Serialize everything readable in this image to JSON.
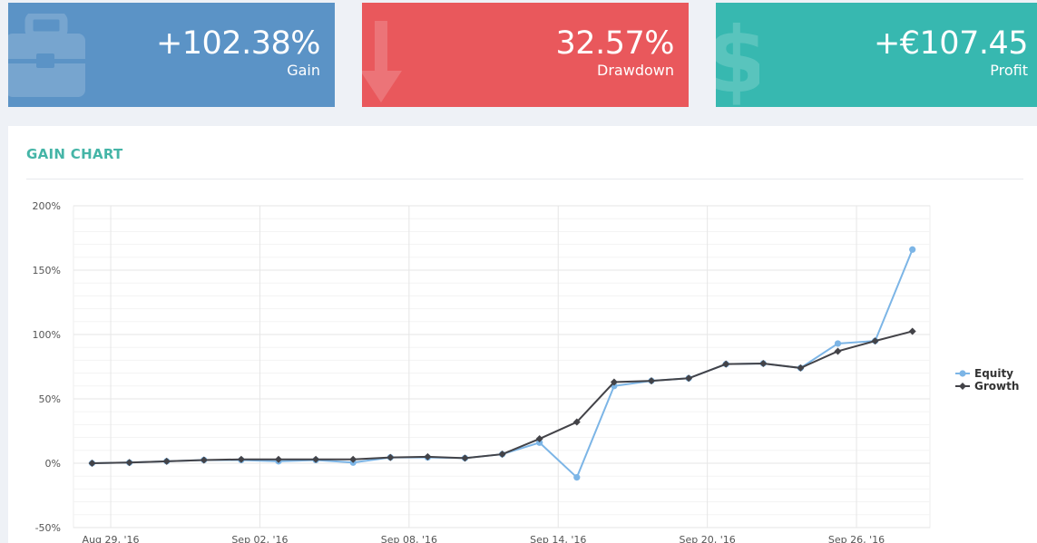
{
  "stats": {
    "gain": {
      "value": "+102.38%",
      "label": "Gain",
      "color": "#5b93c6",
      "icon": "briefcase-icon"
    },
    "drawdown": {
      "value": "32.57%",
      "label": "Drawdown",
      "color": "#e9585c",
      "icon": "arrow-down-icon"
    },
    "profit": {
      "value": "+€107.45",
      "label": "Profit",
      "color": "#37b8b0",
      "icon": "dollar-icon"
    }
  },
  "panel": {
    "title": "GAIN CHART"
  },
  "chart_data": {
    "type": "line",
    "title": "",
    "xlabel": "",
    "ylabel": "",
    "y_ticks": [
      "200%",
      "150%",
      "100%",
      "50%",
      "0%",
      "-50%"
    ],
    "y_tick_values": [
      200,
      150,
      100,
      50,
      0,
      -50
    ],
    "ylim": [
      -50,
      200
    ],
    "x_tick_labels": [
      "Aug 29, '16",
      "Sep 02, '16",
      "Sep 08, '16",
      "Sep 14, '16",
      "Sep 20, '16",
      "Sep 26, '16"
    ],
    "x_tick_index": [
      0.5,
      4.5,
      8.5,
      12.5,
      16.5,
      20.5
    ],
    "grid": true,
    "legend_position": "right",
    "series": [
      {
        "name": "Equity",
        "color": "#7cb5e6",
        "marker": "circle",
        "values": [
          0,
          0.5,
          1.5,
          2.5,
          2.5,
          1.5,
          2.5,
          0.5,
          4.5,
          4.5,
          4,
          7,
          16,
          -11,
          60,
          64,
          66,
          77,
          77.5,
          74,
          93,
          95,
          166
        ]
      },
      {
        "name": "Growth",
        "color": "#434348",
        "marker": "diamond",
        "values": [
          0,
          0.5,
          1.5,
          2.5,
          3,
          3,
          3,
          3,
          4.5,
          5,
          4,
          7,
          19,
          32,
          63,
          64,
          66,
          77,
          77.5,
          74,
          87,
          95,
          102.5
        ]
      }
    ]
  }
}
